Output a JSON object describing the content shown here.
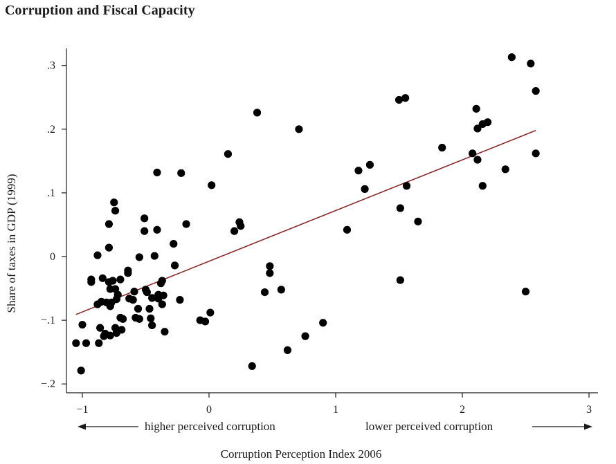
{
  "chart_data": {
    "type": "scatter",
    "title": "Corruption and Fiscal Capacity",
    "xlabel": "Corruption Perception Index 2006",
    "ylabel": "Share of taxes in GDP (1999)",
    "xlim": [
      -1.08,
      3.0
    ],
    "ylim": [
      -0.21,
      0.325
    ],
    "x_ticks": [
      -1,
      0,
      1,
      2,
      3
    ],
    "x_tick_labels": [
      "−1",
      "0",
      "1",
      "2",
      "3"
    ],
    "y_ticks": [
      -0.2,
      -0.1,
      0,
      0.1,
      0.2,
      0.3
    ],
    "y_tick_labels": [
      "−.2",
      "−.1",
      "0",
      ".1",
      ".2",
      ".3"
    ],
    "annotations": {
      "left": "higher perceived corruption",
      "right": "lower perceived corruption"
    },
    "colors": {
      "points": "#000000",
      "fit_line": "#8b2a2a"
    },
    "fit_line": {
      "x": [
        -1.05,
        2.58
      ],
      "y": [
        -0.091,
        0.198
      ]
    },
    "points": {
      "x": [
        -1.05,
        -1.0,
        -1.01,
        -0.97,
        -0.93,
        -0.93,
        -0.88,
        -0.88,
        -0.87,
        -0.86,
        -0.85,
        -0.84,
        -0.83,
        -0.82,
        -0.81,
        -0.79,
        -0.79,
        -0.79,
        -0.78,
        -0.78,
        -0.78,
        -0.77,
        -0.76,
        -0.75,
        -0.74,
        -0.74,
        -0.74,
        -0.73,
        -0.73,
        -0.73,
        -0.72,
        -0.7,
        -0.7,
        -0.69,
        -0.68,
        -0.64,
        -0.64,
        -0.63,
        -0.6,
        -0.59,
        -0.58,
        -0.56,
        -0.55,
        -0.55,
        -0.51,
        -0.51,
        -0.5,
        -0.49,
        -0.47,
        -0.46,
        -0.45,
        -0.45,
        -0.43,
        -0.41,
        -0.41,
        -0.4,
        -0.4,
        -0.38,
        -0.37,
        -0.37,
        -0.36,
        -0.35,
        -0.28,
        -0.27,
        -0.23,
        -0.22,
        -0.18,
        -0.07,
        -0.03,
        0.01,
        0.02,
        0.15,
        0.2,
        0.24,
        0.25,
        0.34,
        0.38,
        0.44,
        0.48,
        0.48,
        0.57,
        0.62,
        0.76,
        0.71,
        0.9,
        1.09,
        1.18,
        1.23,
        1.27,
        1.5,
        1.51,
        1.51,
        1.55,
        1.56,
        1.65,
        1.84,
        2.08,
        2.11,
        2.12,
        2.12,
        2.16,
        2.16,
        2.2,
        2.34,
        2.39,
        2.5,
        2.54,
        2.58,
        2.58
      ],
      "y": [
        -0.136,
        -0.107,
        -0.179,
        -0.136,
        -0.036,
        -0.04,
        0.002,
        -0.075,
        -0.136,
        -0.112,
        -0.071,
        -0.034,
        -0.125,
        -0.121,
        -0.072,
        0.051,
        0.014,
        -0.04,
        -0.051,
        -0.078,
        -0.124,
        -0.072,
        -0.038,
        0.085,
        0.072,
        -0.051,
        -0.112,
        -0.115,
        -0.12,
        -0.067,
        -0.06,
        -0.036,
        -0.096,
        -0.115,
        -0.098,
        -0.022,
        -0.026,
        -0.066,
        -0.068,
        -0.055,
        -0.096,
        -0.082,
        -0.098,
        -0.001,
        0.06,
        0.04,
        -0.052,
        -0.056,
        -0.082,
        -0.097,
        -0.108,
        -0.065,
        0.001,
        0.132,
        0.042,
        -0.06,
        -0.066,
        -0.042,
        -0.038,
        -0.075,
        -0.061,
        -0.118,
        0.02,
        -0.014,
        -0.068,
        0.131,
        0.051,
        -0.1,
        -0.102,
        -0.088,
        0.112,
        0.161,
        0.04,
        0.054,
        0.048,
        -0.172,
        0.226,
        -0.056,
        -0.015,
        -0.026,
        -0.052,
        -0.147,
        -0.125,
        0.2,
        -0.104,
        0.042,
        0.135,
        0.106,
        0.144,
        0.246,
        0.076,
        -0.037,
        0.249,
        0.111,
        0.055,
        0.171,
        0.162,
        0.232,
        0.201,
        0.152,
        0.208,
        0.111,
        0.211,
        0.137,
        0.313,
        -0.055,
        0.303,
        0.26,
        0.162
      ]
    }
  }
}
